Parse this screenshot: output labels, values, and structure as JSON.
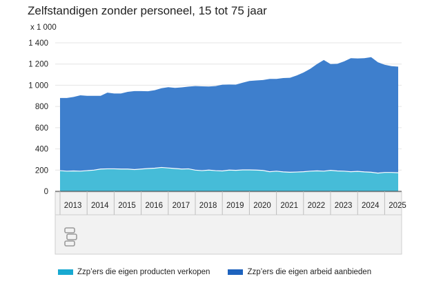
{
  "title": "Zelfstandigen zonder personeel, 15 tot 75 jaar",
  "unit_label": "x 1 000",
  "logo": {
    "name": "cbs"
  },
  "colors": {
    "producten": "#46bcd8",
    "arbeid": "#3e7fcd",
    "legend_producten": "#18a9d1",
    "legend_arbeid": "#1e63be"
  },
  "chart_data": {
    "type": "area",
    "stacked": true,
    "title": "Zelfstandigen zonder personeel, 15 tot 75 jaar",
    "ylabel": "x 1 000",
    "ylim": [
      0,
      1400
    ],
    "yticks": [
      0,
      200,
      400,
      600,
      800,
      1000,
      1200,
      1400
    ],
    "yticklabels": [
      "0",
      "200",
      "400",
      "600",
      "800",
      "1 000",
      "1 200",
      "1 400"
    ],
    "xticks": [
      "2013",
      "2014",
      "2015",
      "2016",
      "2017",
      "2018",
      "2019",
      "2020",
      "2021",
      "2022",
      "2023",
      "2024",
      "2025"
    ],
    "x": [
      "2013-Q1",
      "2013-Q2",
      "2013-Q3",
      "2013-Q4",
      "2014-Q1",
      "2014-Q2",
      "2014-Q3",
      "2014-Q4",
      "2015-Q1",
      "2015-Q2",
      "2015-Q3",
      "2015-Q4",
      "2016-Q1",
      "2016-Q2",
      "2016-Q3",
      "2016-Q4",
      "2017-Q1",
      "2017-Q2",
      "2017-Q3",
      "2017-Q4",
      "2018-Q1",
      "2018-Q2",
      "2018-Q3",
      "2018-Q4",
      "2019-Q1",
      "2019-Q2",
      "2019-Q3",
      "2019-Q4",
      "2020-Q1",
      "2020-Q2",
      "2020-Q3",
      "2020-Q4",
      "2021-Q1",
      "2021-Q2",
      "2021-Q3",
      "2021-Q4",
      "2022-Q1",
      "2022-Q2",
      "2022-Q3",
      "2022-Q4",
      "2023-Q1",
      "2023-Q2",
      "2023-Q3",
      "2023-Q4",
      "2024-Q1",
      "2024-Q2",
      "2024-Q3",
      "2024-Q4",
      "2025-Q1",
      "2025-Q2",
      "2025-Q3"
    ],
    "series": [
      {
        "name": "Zzp'ers die eigen producten verkopen",
        "values": [
          195,
          190,
          192,
          190,
          195,
          200,
          210,
          212,
          212,
          210,
          210,
          205,
          210,
          215,
          218,
          225,
          220,
          215,
          210,
          212,
          200,
          195,
          200,
          195,
          192,
          200,
          198,
          202,
          202,
          200,
          197,
          185,
          190,
          183,
          180,
          182,
          185,
          190,
          193,
          190,
          198,
          192,
          190,
          185,
          188,
          183,
          180,
          172,
          178,
          178,
          175
        ]
      },
      {
        "name": "Zzp'ers die eigen arbeid aanbieden",
        "values": [
          685,
          690,
          698,
          715,
          705,
          700,
          690,
          718,
          710,
          712,
          728,
          740,
          735,
          728,
          735,
          747,
          762,
          760,
          770,
          775,
          792,
          795,
          788,
          797,
          813,
          807,
          808,
          822,
          838,
          845,
          852,
          875,
          870,
          885,
          890,
          910,
          935,
          965,
          1007,
          1048,
          1002,
          1010,
          1035,
          1070,
          1065,
          1072,
          1085,
          1045,
          1015,
          1002,
          1000
        ]
      }
    ]
  },
  "legend": [
    {
      "label": "Zzp’ers die eigen producten verkopen",
      "color": "#18a9d1"
    },
    {
      "label": "Zzp’ers die eigen arbeid aanbieden",
      "color": "#1e63be"
    }
  ]
}
